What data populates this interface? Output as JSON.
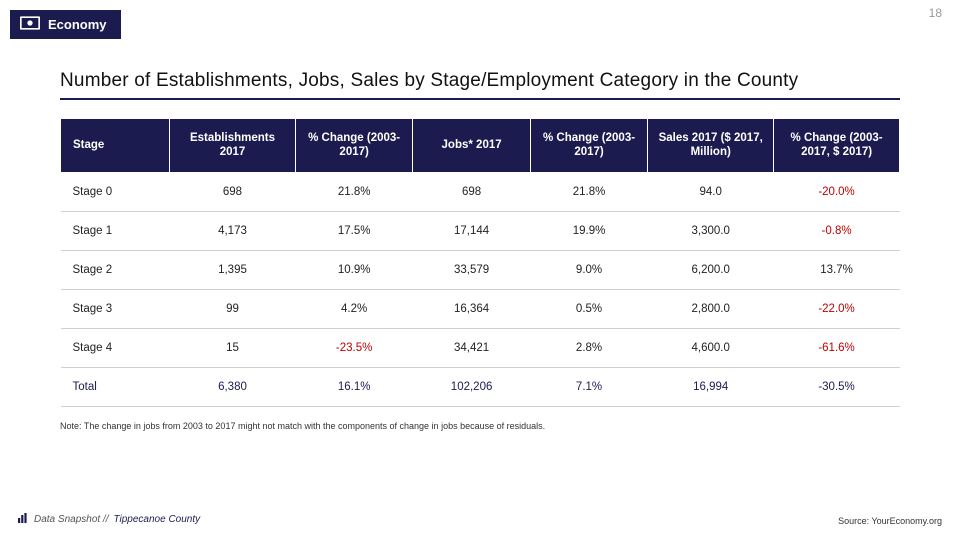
{
  "page_number": "18",
  "badge": {
    "label": "Economy"
  },
  "title": "Number of Establishments, Jobs, Sales by Stage/Employment Category in the County",
  "table": {
    "columns": [
      "Stage",
      "Establishments 2017",
      "% Change (2003-2017)",
      "Jobs* 2017",
      "% Change (2003-2017)",
      "Sales 2017 ($ 2017, Million)",
      "% Change (2003-2017, $ 2017)"
    ],
    "rows": [
      {
        "cells": [
          "Stage 0",
          "698",
          "21.8%",
          "698",
          "21.8%",
          "94.0",
          "-20.0%"
        ],
        "negative": [
          false,
          false,
          false,
          false,
          false,
          false,
          true
        ],
        "total": false
      },
      {
        "cells": [
          "Stage 1",
          "4,173",
          "17.5%",
          "17,144",
          "19.9%",
          "3,300.0",
          "-0.8%"
        ],
        "negative": [
          false,
          false,
          false,
          false,
          false,
          false,
          true
        ],
        "total": false
      },
      {
        "cells": [
          "Stage 2",
          "1,395",
          "10.9%",
          "33,579",
          "9.0%",
          "6,200.0",
          "13.7%"
        ],
        "negative": [
          false,
          false,
          false,
          false,
          false,
          false,
          false
        ],
        "total": false
      },
      {
        "cells": [
          "Stage 3",
          "99",
          "4.2%",
          "16,364",
          "0.5%",
          "2,800.0",
          "-22.0%"
        ],
        "negative": [
          false,
          false,
          false,
          false,
          false,
          false,
          true
        ],
        "total": false
      },
      {
        "cells": [
          "Stage 4",
          "15",
          "-23.5%",
          "34,421",
          "2.8%",
          "4,600.0",
          "-61.6%"
        ],
        "negative": [
          false,
          false,
          true,
          false,
          false,
          false,
          true
        ],
        "total": false
      },
      {
        "cells": [
          "Total",
          "6,380",
          "16.1%",
          "102,206",
          "7.1%",
          "16,994",
          "-30.5%"
        ],
        "negative": [
          false,
          false,
          false,
          false,
          false,
          false,
          true
        ],
        "total": true
      }
    ],
    "col_widths": [
      "13%",
      "15%",
      "14%",
      "14%",
      "14%",
      "15%",
      "15%"
    ]
  },
  "note": "Note: The change in jobs from 2003 to 2017 might not match with the components of change in jobs because of residuals.",
  "footer": {
    "left_prefix": "Data Snapshot //",
    "county": "Tippecanoe County",
    "source": "Source: YourEconomy.org"
  },
  "colors": {
    "primary": "#1b1b50",
    "negative": "#c00000",
    "border": "#d0d0d0"
  }
}
